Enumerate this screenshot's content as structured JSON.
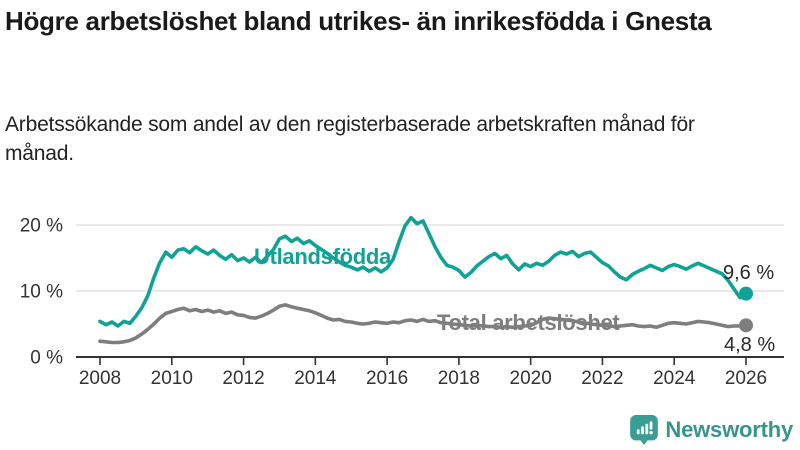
{
  "header": {
    "title": "Högre arbetslöshet bland utrikes- än inrikesfödda i Gnesta",
    "subtitle": "Arbetssökande som andel av den registerbaserade arbetskraften månad för månad."
  },
  "chart_data": {
    "type": "line",
    "x_start_year": 2008,
    "x_end_year": 2026,
    "points_per_year": 6,
    "x_ticks": [
      2008,
      2010,
      2012,
      2014,
      2016,
      2018,
      2020,
      2022,
      2024,
      2026
    ],
    "y_ticks": [
      {
        "label": "0 %",
        "value": 0
      },
      {
        "label": "10 %",
        "value": 10
      },
      {
        "label": "20 %",
        "value": 20
      }
    ],
    "ylim": [
      0,
      22
    ],
    "grid": true,
    "axis_color": "#333333",
    "grid_color": "#dcdcdc",
    "series": [
      {
        "name": "Utlandsfödda",
        "color": "#10a296",
        "end_label": "9,6 %",
        "end_value": 9.6,
        "values": [
          5.4,
          4.9,
          5.3,
          4.7,
          5.4,
          5.1,
          6.2,
          7.5,
          9.3,
          12.0,
          14.3,
          15.9,
          15.1,
          16.2,
          16.4,
          15.8,
          16.7,
          16.1,
          15.6,
          16.2,
          15.4,
          14.8,
          15.5,
          14.6,
          15.0,
          14.4,
          15.1,
          14.3,
          15.3,
          16.3,
          17.9,
          18.3,
          17.5,
          18.0,
          17.2,
          17.6,
          16.9,
          16.3,
          15.7,
          15.0,
          14.4,
          13.9,
          13.6,
          13.2,
          13.6,
          13.0,
          13.5,
          12.9,
          13.5,
          14.8,
          17.5,
          19.9,
          21.1,
          20.2,
          20.6,
          18.7,
          16.7,
          15.1,
          13.9,
          13.6,
          13.1,
          12.1,
          12.8,
          13.8,
          14.5,
          15.2,
          15.7,
          14.9,
          15.4,
          14.1,
          13.2,
          14.1,
          13.7,
          14.2,
          13.9,
          14.5,
          15.4,
          15.9,
          15.6,
          16.0,
          15.2,
          15.7,
          15.9,
          15.1,
          14.3,
          13.8,
          12.9,
          12.1,
          11.7,
          12.5,
          13.0,
          13.4,
          13.9,
          13.5,
          13.1,
          13.7,
          14.0,
          13.7,
          13.3,
          13.8,
          14.2,
          13.8,
          13.4,
          13.0,
          12.6,
          11.6,
          10.3,
          9.0,
          9.6
        ]
      },
      {
        "name": "Total arbetslöshet",
        "color": "#7e7e7e",
        "end_label": "4,8 %",
        "end_value": 4.8,
        "values": [
          2.4,
          2.3,
          2.2,
          2.2,
          2.3,
          2.5,
          2.9,
          3.5,
          4.2,
          5.0,
          5.9,
          6.6,
          6.9,
          7.2,
          7.4,
          7.0,
          7.2,
          6.9,
          7.1,
          6.8,
          7.0,
          6.6,
          6.8,
          6.4,
          6.3,
          6.0,
          5.9,
          6.2,
          6.6,
          7.1,
          7.7,
          7.9,
          7.6,
          7.4,
          7.2,
          7.0,
          6.7,
          6.3,
          5.9,
          5.6,
          5.7,
          5.4,
          5.3,
          5.1,
          5.0,
          5.1,
          5.3,
          5.2,
          5.1,
          5.3,
          5.2,
          5.5,
          5.6,
          5.4,
          5.7,
          5.4,
          5.5,
          5.2,
          5.1,
          5.0,
          4.9,
          4.8,
          4.7,
          4.8,
          4.7,
          4.6,
          4.6,
          4.5,
          4.6,
          4.5,
          4.6,
          4.7,
          4.8,
          5.2,
          5.7,
          5.9,
          5.8,
          5.7,
          5.6,
          5.5,
          5.3,
          5.2,
          5.0,
          4.9,
          4.8,
          4.7,
          4.6,
          4.7,
          4.8,
          4.9,
          4.7,
          4.6,
          4.7,
          4.5,
          4.8,
          5.1,
          5.2,
          5.1,
          5.0,
          5.2,
          5.4,
          5.3,
          5.2,
          5.0,
          4.8,
          4.6,
          4.7,
          4.7,
          4.8
        ]
      }
    ]
  },
  "footer": {
    "brand": "Newsworthy",
    "brand_color": "#38948c",
    "icon": "newsworthy-bar-chart-badge-icon",
    "icon_color": "#3a9e94"
  }
}
